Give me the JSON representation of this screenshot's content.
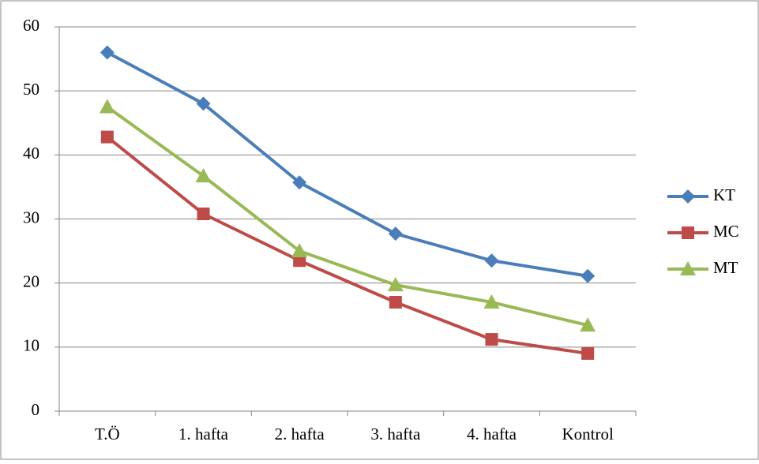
{
  "chart_data": {
    "type": "line",
    "categories": [
      "T.Ö",
      "1. hafta",
      "2. hafta",
      "3. hafta",
      "4. hafta",
      "Kontrol"
    ],
    "series": [
      {
        "name": "KT",
        "color": "#4a7ebb",
        "marker": "diamond",
        "values": [
          56,
          48,
          35.7,
          27.7,
          23.5,
          21.1
        ]
      },
      {
        "name": "MC",
        "color": "#be4b48",
        "marker": "square",
        "values": [
          42.8,
          30.8,
          23.5,
          17,
          11.2,
          9
        ]
      },
      {
        "name": "MT",
        "color": "#98b954",
        "marker": "triangle",
        "values": [
          47.5,
          36.7,
          25,
          19.7,
          17,
          13.4
        ]
      }
    ],
    "ylim": [
      0,
      60
    ],
    "yticks": [
      0,
      10,
      20,
      30,
      40,
      50,
      60
    ],
    "grid": true,
    "legend": "right"
  }
}
